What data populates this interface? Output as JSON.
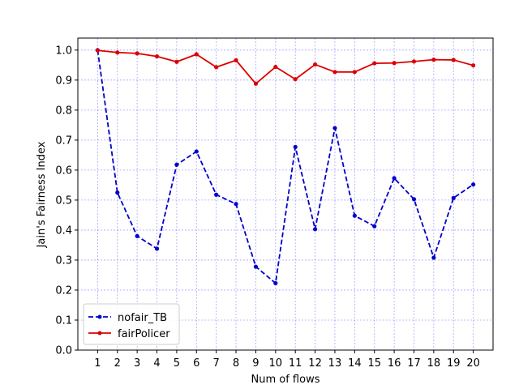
{
  "chart_data": {
    "type": "line",
    "xlabel": "Num of flows",
    "ylabel": "Jain's Fairness Index",
    "x": [
      1,
      2,
      3,
      4,
      5,
      6,
      7,
      8,
      9,
      10,
      11,
      12,
      13,
      14,
      15,
      16,
      17,
      18,
      19,
      20
    ],
    "xlim": [
      0,
      21
    ],
    "ylim": [
      0.0,
      1.04
    ],
    "yticks": [
      0.0,
      0.1,
      0.2,
      0.3,
      0.4,
      0.5,
      0.6,
      0.7,
      0.8,
      0.9,
      1.0
    ],
    "ytick_labels": [
      "0.0",
      "0.1",
      "0.2",
      "0.3",
      "0.4",
      "0.5",
      "0.6",
      "0.7",
      "0.8",
      "0.9",
      "1.0"
    ],
    "xtick_labels": [
      "1",
      "2",
      "3",
      "4",
      "5",
      "6",
      "7",
      "8",
      "9",
      "10",
      "11",
      "12",
      "13",
      "14",
      "15",
      "16",
      "17",
      "18",
      "19",
      "20"
    ],
    "grid": true,
    "grid_color": "#0000ff",
    "legend_position": "lower-left",
    "series": [
      {
        "name": "nofair_TB",
        "color": "#0000cc",
        "style": "dashed",
        "marker": "dot",
        "values": [
          1.0,
          0.525,
          0.38,
          0.338,
          0.618,
          0.662,
          0.518,
          0.487,
          0.278,
          0.223,
          0.677,
          0.403,
          0.74,
          0.448,
          0.413,
          0.573,
          0.503,
          0.308,
          0.507,
          0.552
        ]
      },
      {
        "name": "fairPolicer",
        "color": "#dd0000",
        "style": "solid",
        "marker": "dot",
        "values": [
          0.999,
          0.992,
          0.989,
          0.979,
          0.961,
          0.986,
          0.943,
          0.966,
          0.888,
          0.944,
          0.903,
          0.952,
          0.927,
          0.927,
          0.956,
          0.957,
          0.962,
          0.968,
          0.967,
          0.949
        ]
      }
    ]
  }
}
